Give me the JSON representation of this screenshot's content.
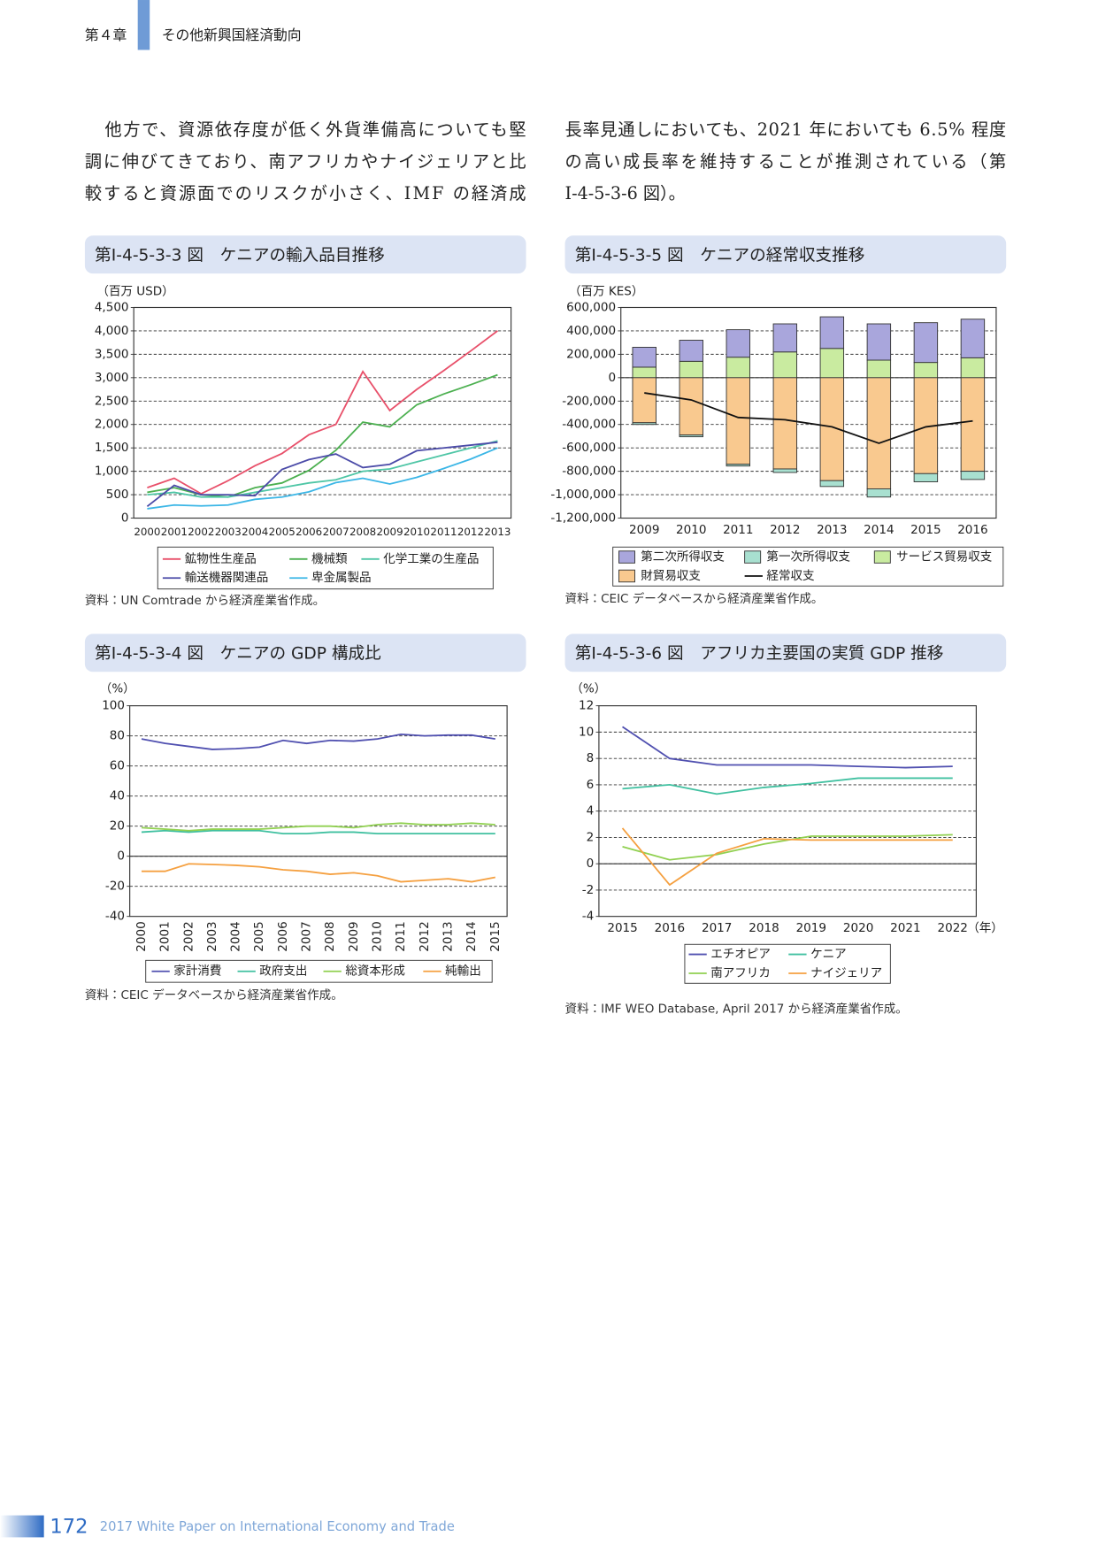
{
  "header": {
    "chapter": "第４章",
    "section": "その他新興国経済動向"
  },
  "body": {
    "lines": [
      "他方で、資源依存度が低く外貨準備高についても堅",
      "調に伸びてきており、南アフリカやナイジェリアと比",
      "較すると資源面でのリスクが小さく、IMF の経済成",
      "長率見通しにおいても、2021 年においても 6.5% 程度",
      "の高い成長率を維持することが推測されている（第",
      "Ⅰ-4-5-3-6 図）。"
    ]
  },
  "figures": [
    {
      "title": "第Ⅰ-4-5-3-3 図　ケニアの輸入品目推移",
      "source": "資料：UN Comtrade から経済産業省作成。"
    },
    {
      "title": "第Ⅰ-4-5-3-5 図　ケニアの経常収支推移",
      "source": "資料：CEIC データベースから経済産業省作成。"
    },
    {
      "title": "第Ⅰ-4-5-3-4 図　ケニアの GDP 構成比",
      "source": "資料：CEIC データベースから経済産業省作成。"
    },
    {
      "title": "第Ⅰ-4-5-3-6 図　アフリカ主要国の実質 GDP 推移",
      "source": "資料：IMF WEO Database, April 2017 から経済産業省作成。"
    }
  ],
  "chart_data": [
    {
      "type": "line",
      "y_unit": "（百万 USD）",
      "categories": [
        "2000",
        "2001",
        "2002",
        "2003",
        "2004",
        "2005",
        "2006",
        "2007",
        "2008",
        "2009",
        "2010",
        "2011",
        "2012",
        "2013"
      ],
      "series": [
        {
          "name": "鉱物性生産品",
          "color": "#e8506a",
          "values": [
            650,
            850,
            520,
            800,
            1120,
            1380,
            1780,
            2000,
            3130,
            2300,
            2750,
            3150,
            3570,
            4000
          ]
        },
        {
          "name": "機械類",
          "color": "#4cb050",
          "values": [
            550,
            650,
            500,
            450,
            650,
            750,
            1020,
            1450,
            2050,
            1950,
            2420,
            2650,
            2850,
            3060
          ]
        },
        {
          "name": "化学工業の生産品",
          "color": "#4fc6a6",
          "values": [
            500,
            550,
            450,
            450,
            550,
            650,
            750,
            820,
            1000,
            1050,
            1200,
            1350,
            1500,
            1650
          ]
        },
        {
          "name": "輸送機器関連品",
          "color": "#4b4ba8",
          "values": [
            250,
            700,
            500,
            500,
            480,
            1040,
            1250,
            1370,
            1080,
            1150,
            1440,
            1500,
            1560,
            1620
          ]
        },
        {
          "name": "卑金属製品",
          "color": "#3bb6e6",
          "values": [
            200,
            280,
            260,
            280,
            400,
            450,
            560,
            760,
            850,
            730,
            870,
            1060,
            1260,
            1500
          ]
        }
      ],
      "ylim": [
        0,
        4500
      ],
      "yticks": [
        0,
        500,
        {
          "value": 1000,
          "label": "1,000"
        },
        {
          "value": 1500,
          "label": "1,500"
        },
        {
          "value": 2000,
          "label": "2,000"
        },
        {
          "value": 2500,
          "label": "2,500"
        },
        {
          "value": 3000,
          "label": "3,000"
        },
        {
          "value": 3500,
          "label": "3,500"
        },
        {
          "value": 4000,
          "label": "4,000"
        },
        {
          "value": 4500,
          "label": "4,500"
        }
      ],
      "grid": true
    },
    {
      "type": "bar",
      "y_unit": "（百万 KES）",
      "categories": [
        "2009",
        "2010",
        "2011",
        "2012",
        "2013",
        "2014",
        "2015",
        "2016"
      ],
      "series": [
        {
          "name": "サービス貿易収支",
          "color": "#c9eba0",
          "values": [
            90000,
            140000,
            175000,
            220000,
            250000,
            150000,
            130000,
            170000
          ]
        },
        {
          "name": "財貿易収支",
          "color": "#f9c98f",
          "values": [
            -385000,
            -490000,
            -740000,
            -780000,
            -880000,
            -950000,
            -820000,
            -800000
          ]
        },
        {
          "name": "第一次所得収支",
          "color": "#a8e0d0",
          "values": [
            -15000,
            -15000,
            -15000,
            -30000,
            -50000,
            -70000,
            -70000,
            -70000
          ]
        },
        {
          "name": "第二次所得収支",
          "color": "#a9a6dc",
          "values": [
            170000,
            180000,
            235000,
            240000,
            270000,
            310000,
            340000,
            330000
          ]
        },
        {
          "name": "経常収支",
          "type": "line",
          "color": "#111111",
          "values": [
            -130000,
            -190000,
            -340000,
            -360000,
            -420000,
            -560000,
            -420000,
            -370000
          ]
        }
      ],
      "ylim": [
        -1200000,
        600000
      ],
      "yticks": [
        {
          "value": -1200000,
          "label": "-1,200,000"
        },
        {
          "value": -1000000,
          "label": "-1,000,000"
        },
        {
          "value": -800000,
          "label": "-800,000"
        },
        {
          "value": -600000,
          "label": "-600,000"
        },
        {
          "value": -400000,
          "label": "-400,000"
        },
        {
          "value": -200000,
          "label": "-200,000"
        },
        0,
        {
          "value": 200000,
          "label": "200,000"
        },
        {
          "value": 400000,
          "label": "400,000"
        },
        {
          "value": 600000,
          "label": "600,000"
        }
      ],
      "grid": true
    },
    {
      "type": "line",
      "y_unit": "（%）",
      "categories": [
        "2000",
        "2001",
        "2002",
        "2003",
        "2004",
        "2005",
        "2006",
        "2007",
        "2008",
        "2009",
        "2010",
        "2011",
        "2012",
        "2013",
        "2014",
        "2015"
      ],
      "series": [
        {
          "name": "家計消費",
          "color": "#5050b0",
          "values": [
            78,
            75,
            73,
            71,
            71.5,
            72.5,
            77,
            75,
            77,
            76.5,
            78,
            81,
            80,
            80.5,
            80.5,
            78
          ]
        },
        {
          "name": "政府支出",
          "color": "#40c0a0",
          "values": [
            16,
            17,
            16,
            17,
            17,
            17,
            15,
            15,
            16,
            16,
            15,
            15,
            15,
            15,
            15,
            15
          ]
        },
        {
          "name": "総資本形成",
          "color": "#90d050",
          "values": [
            19,
            18,
            17,
            18,
            18,
            18,
            19,
            20,
            20,
            19,
            21,
            22,
            21,
            21,
            22,
            21
          ]
        },
        {
          "name": "純輸出",
          "color": "#f5a040",
          "values": [
            -10,
            -10,
            -5,
            -5.5,
            -6,
            -7,
            -9,
            -10,
            -12,
            -11,
            -13,
            -17,
            -16,
            -15,
            -17,
            -14
          ]
        }
      ],
      "ylim": [
        -40,
        100
      ],
      "yticks": [
        -40,
        -20,
        0,
        20,
        40,
        60,
        80,
        100
      ],
      "grid": true
    },
    {
      "type": "line",
      "y_unit": "（%）",
      "x_unit": "（年）",
      "x": [
        2015,
        2016,
        2017,
        2018,
        2019,
        2020,
        2021,
        2022
      ],
      "series": [
        {
          "name": "エチオピア",
          "color": "#5050b0",
          "values": [
            10.4,
            8.0,
            7.5,
            7.5,
            7.5,
            7.4,
            7.3,
            7.4
          ]
        },
        {
          "name": "ケニア",
          "color": "#40c0a0",
          "values": [
            5.7,
            6.0,
            5.3,
            5.8,
            6.1,
            6.5,
            6.5,
            6.5
          ]
        },
        {
          "name": "南アフリカ",
          "color": "#90d050",
          "values": [
            1.3,
            0.3,
            0.7,
            1.5,
            2.1,
            2.1,
            2.1,
            2.2
          ]
        },
        {
          "name": "ナイジェリア",
          "color": "#f5a040",
          "values": [
            2.7,
            -1.6,
            0.8,
            1.9,
            1.8,
            1.8,
            1.8,
            1.8
          ]
        }
      ],
      "xlim": [
        2014.5,
        2022.5
      ],
      "xticks": [
        2015,
        2016,
        2017,
        2018,
        2019,
        2020,
        2021,
        2022
      ],
      "ylim": [
        -4,
        12
      ],
      "yticks": [
        -4,
        -2,
        0,
        2,
        4,
        6,
        8,
        10,
        12
      ],
      "grid": true
    }
  ],
  "footer": {
    "page_number": "172",
    "text": "2017 White Paper on International Economy and Trade"
  }
}
